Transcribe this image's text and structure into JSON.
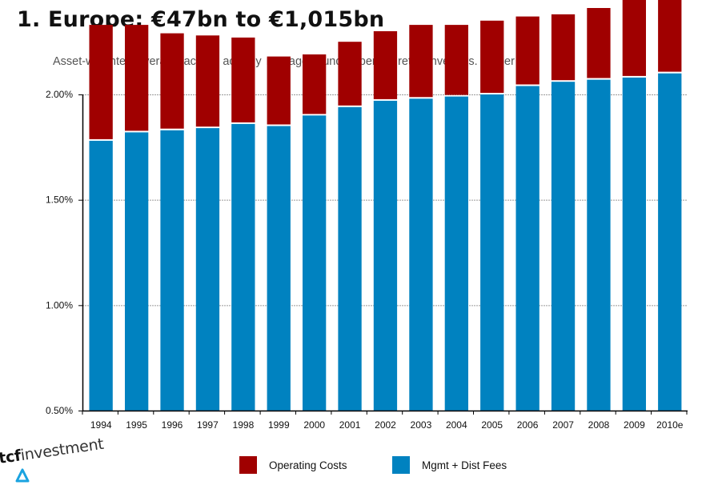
{
  "header": {
    "title": "1. Europe: €47bn to €1,015bn",
    "subtitle": "Asset-weighted  average  across actively  managed  funds  open  to  retail  investors.  Lipper"
  },
  "logo": {
    "brand_bold": "tcf",
    "brand_light": "investment",
    "icon": "delta-triangle-icon"
  },
  "colors": {
    "operating_costs": "#a00000",
    "mgmt_dist_fees": "#0082c0",
    "gridline": "#999999",
    "axis": "#000000"
  },
  "chart_data": {
    "type": "bar",
    "stacked": true,
    "title": "1. Europe: €47bn to €1,015bn",
    "subtitle": "Asset-weighted average across actively managed funds open to retail investors. Lipper",
    "xlabel": "",
    "ylabel": "",
    "categories": [
      "1994",
      "1995",
      "1996",
      "1997",
      "1998",
      "1999",
      "2000",
      "2001",
      "2002",
      "2003",
      "2004",
      "2005",
      "2006",
      "2007",
      "2008",
      "2009",
      "2010e"
    ],
    "ylim": [
      0.5,
      2.0
    ],
    "yticks": [
      0.5,
      1.0,
      1.5,
      2.0
    ],
    "ytick_labels": [
      "0.50%",
      "1.00%",
      "1.50%",
      "2.00%"
    ],
    "grid": true,
    "legend_position": "bottom",
    "series": [
      {
        "name": "Mgmt + Dist Fees",
        "color": "#0082c0",
        "values": [
          1.28,
          1.32,
          1.33,
          1.34,
          1.36,
          1.35,
          1.4,
          1.44,
          1.47,
          1.48,
          1.49,
          1.5,
          1.54,
          1.56,
          1.57,
          1.58,
          1.6
        ]
      },
      {
        "name": "Operating Costs",
        "color": "#a00000",
        "values": [
          0.55,
          0.51,
          0.46,
          0.44,
          0.41,
          0.33,
          0.29,
          0.31,
          0.33,
          0.35,
          0.34,
          0.35,
          0.33,
          0.32,
          0.34,
          0.39,
          0.4
        ]
      }
    ],
    "totals": [
      1.83,
      1.83,
      1.79,
      1.78,
      1.77,
      1.68,
      1.69,
      1.75,
      1.8,
      1.83,
      1.83,
      1.85,
      1.87,
      1.88,
      1.91,
      1.97,
      2.0
    ],
    "legend": [
      {
        "label": "Operating Costs",
        "color": "#a00000"
      },
      {
        "label": "Mgmt + Dist Fees",
        "color": "#0082c0"
      }
    ]
  }
}
